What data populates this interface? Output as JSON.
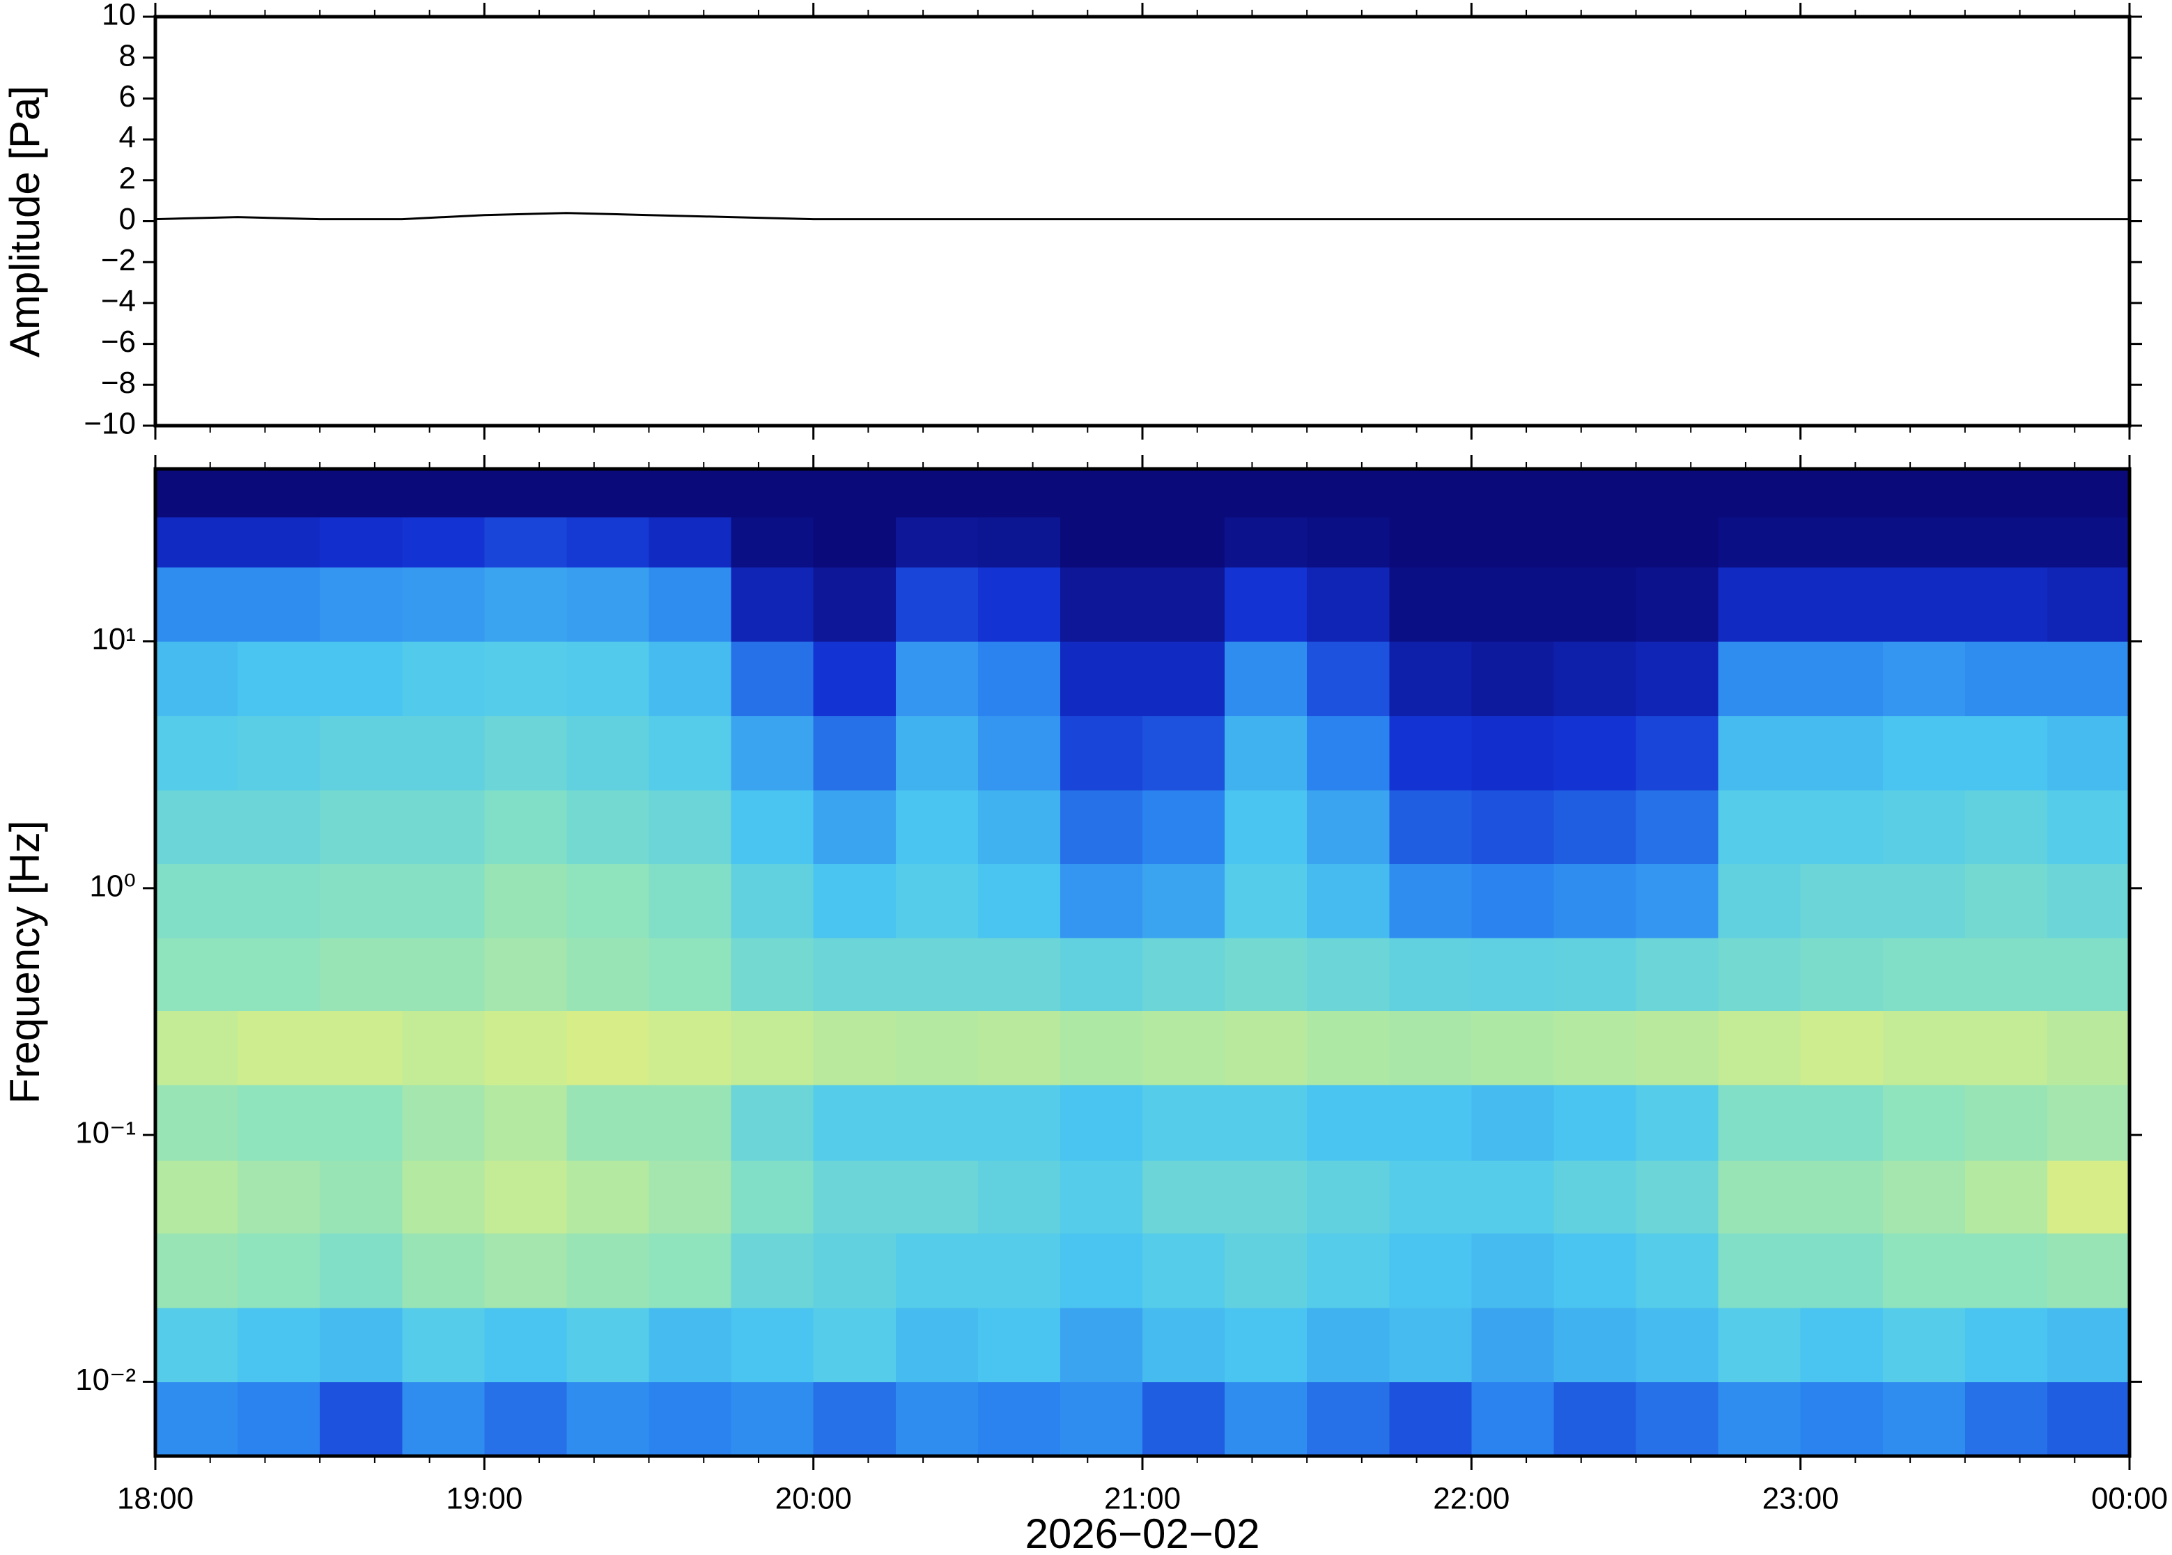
{
  "chart_data": [
    {
      "type": "line",
      "ylabel": "Amplitude [Pa]",
      "color": "#000000",
      "x": [
        0,
        15,
        30,
        45,
        60,
        75,
        90,
        105,
        120,
        135,
        150,
        165,
        180,
        195,
        210,
        225,
        240,
        255,
        270,
        285,
        300,
        315,
        330,
        345,
        360
      ],
      "values": [
        0.1,
        0.2,
        0.1,
        0.1,
        0.3,
        0.4,
        0.3,
        0.2,
        0.1,
        0.1,
        0.1,
        0.1,
        0.1,
        0.1,
        0.1,
        0.1,
        0.1,
        0.1,
        0.1,
        0.1,
        0.1,
        0.1,
        0.1,
        0.1,
        0.1
      ],
      "xlim": [
        0,
        360
      ],
      "ylim": [
        -10,
        10
      ],
      "xticks": [
        0,
        60,
        120,
        180,
        240,
        300,
        360
      ],
      "xminorticks": [
        10,
        20,
        30,
        40,
        50,
        70,
        80,
        90,
        100,
        110,
        130,
        140,
        150,
        160,
        170,
        190,
        200,
        210,
        220,
        230,
        250,
        260,
        270,
        280,
        290,
        310,
        320,
        330,
        340,
        350
      ],
      "yticks": [
        10,
        8,
        6,
        4,
        2,
        0,
        {
          "value": -2,
          "label": "−2"
        },
        {
          "value": -4,
          "label": "−4"
        },
        {
          "value": -6,
          "label": "−6"
        },
        {
          "value": -8,
          "label": "−8"
        },
        {
          "value": -10,
          "label": "−10"
        }
      ]
    },
    {
      "type": "heatmap",
      "ylabel": "Frequency [Hz]",
      "xlabel": "2026−02−02",
      "ylog": true,
      "xlim": [
        0,
        360
      ],
      "ylim": [
        0.005,
        50
      ],
      "xticks": [
        {
          "value": 0,
          "label": "18:00"
        },
        {
          "value": 60,
          "label": "19:00"
        },
        {
          "value": 120,
          "label": "20:00"
        },
        {
          "value": 180,
          "label": "21:00"
        },
        {
          "value": 240,
          "label": "22:00"
        },
        {
          "value": 300,
          "label": "23:00"
        },
        {
          "value": 360,
          "label": "00:00"
        }
      ],
      "xminorticks": [
        10,
        20,
        30,
        40,
        50,
        70,
        80,
        90,
        100,
        110,
        130,
        140,
        150,
        160,
        170,
        190,
        200,
        210,
        220,
        230,
        250,
        260,
        270,
        280,
        290,
        310,
        320,
        330,
        340,
        350
      ],
      "yticks": [
        {
          "value": 0.01,
          "label": "10⁻²"
        },
        {
          "value": 0.1,
          "label": "10⁻¹"
        },
        {
          "value": 1,
          "label": "10⁰"
        },
        {
          "value": 10,
          "label": "10¹"
        }
      ],
      "colormap": [
        "#0a0a7a",
        "#1230d0",
        "#2c86f0",
        "#4cc8f0",
        "#8ae2c0",
        "#d6ee88",
        "#f4d070",
        "#f08a50"
      ],
      "x_edges": [
        0,
        15,
        30,
        45,
        60,
        75,
        90,
        105,
        120,
        135,
        150,
        165,
        180,
        195,
        210,
        225,
        240,
        255,
        270,
        285,
        300,
        315,
        330,
        345,
        360
      ],
      "y_edges": [
        0.005,
        0.01,
        0.02,
        0.04,
        0.079,
        0.16,
        0.32,
        0.63,
        1.26,
        2.5,
        5,
        10,
        20,
        32,
        50
      ],
      "z": [
        [
          0.3,
          0.28,
          0.2,
          0.3,
          0.25,
          0.3,
          0.28,
          0.3,
          0.25,
          0.3,
          0.28,
          0.3,
          0.22,
          0.3,
          0.25,
          0.2,
          0.28,
          0.22,
          0.25,
          0.3,
          0.28,
          0.3,
          0.25,
          0.22
        ],
        [
          0.45,
          0.42,
          0.4,
          0.45,
          0.42,
          0.45,
          0.4,
          0.42,
          0.45,
          0.4,
          0.42,
          0.35,
          0.4,
          0.42,
          0.38,
          0.4,
          0.35,
          0.38,
          0.4,
          0.45,
          0.42,
          0.45,
          0.42,
          0.4
        ],
        [
          0.6,
          0.58,
          0.55,
          0.6,
          0.62,
          0.6,
          0.58,
          0.5,
          0.48,
          0.45,
          0.45,
          0.42,
          0.45,
          0.48,
          0.45,
          0.42,
          0.4,
          0.42,
          0.45,
          0.55,
          0.55,
          0.58,
          0.58,
          0.6
        ],
        [
          0.65,
          0.62,
          0.6,
          0.65,
          0.68,
          0.65,
          0.62,
          0.55,
          0.5,
          0.5,
          0.48,
          0.45,
          0.5,
          0.5,
          0.48,
          0.45,
          0.45,
          0.48,
          0.5,
          0.6,
          0.6,
          0.62,
          0.65,
          0.72
        ],
        [
          0.6,
          0.58,
          0.58,
          0.62,
          0.65,
          0.6,
          0.6,
          0.5,
          0.45,
          0.45,
          0.45,
          0.42,
          0.45,
          0.45,
          0.42,
          0.42,
          0.4,
          0.42,
          0.45,
          0.55,
          0.55,
          0.58,
          0.6,
          0.62
        ],
        [
          0.68,
          0.7,
          0.7,
          0.68,
          0.7,
          0.72,
          0.7,
          0.68,
          0.66,
          0.65,
          0.66,
          0.64,
          0.65,
          0.66,
          0.64,
          0.63,
          0.64,
          0.65,
          0.66,
          0.68,
          0.7,
          0.68,
          0.68,
          0.66
        ],
        [
          0.58,
          0.58,
          0.6,
          0.6,
          0.62,
          0.6,
          0.58,
          0.52,
          0.5,
          0.5,
          0.5,
          0.48,
          0.5,
          0.52,
          0.5,
          0.48,
          0.47,
          0.48,
          0.5,
          0.52,
          0.54,
          0.55,
          0.55,
          0.55
        ],
        [
          0.55,
          0.55,
          0.56,
          0.56,
          0.6,
          0.58,
          0.55,
          0.48,
          0.42,
          0.45,
          0.42,
          0.32,
          0.35,
          0.45,
          0.4,
          0.3,
          0.28,
          0.3,
          0.32,
          0.48,
          0.5,
          0.5,
          0.52,
          0.5
        ],
        [
          0.5,
          0.5,
          0.52,
          0.52,
          0.55,
          0.52,
          0.5,
          0.42,
          0.35,
          0.42,
          0.38,
          0.25,
          0.28,
          0.42,
          0.35,
          0.22,
          0.2,
          0.22,
          0.25,
          0.45,
          0.45,
          0.46,
          0.48,
          0.45
        ],
        [
          0.45,
          0.46,
          0.48,
          0.48,
          0.5,
          0.48,
          0.45,
          0.35,
          0.25,
          0.38,
          0.32,
          0.18,
          0.2,
          0.38,
          0.28,
          0.15,
          0.14,
          0.15,
          0.18,
          0.4,
          0.4,
          0.42,
          0.42,
          0.4
        ],
        [
          0.4,
          0.42,
          0.42,
          0.44,
          0.45,
          0.44,
          0.4,
          0.25,
          0.15,
          0.32,
          0.28,
          0.12,
          0.12,
          0.3,
          0.2,
          0.08,
          0.06,
          0.08,
          0.1,
          0.3,
          0.3,
          0.32,
          0.3,
          0.3
        ],
        [
          0.3,
          0.3,
          0.32,
          0.33,
          0.35,
          0.34,
          0.3,
          0.1,
          0.05,
          0.18,
          0.15,
          0.05,
          0.05,
          0.15,
          0.1,
          0.02,
          0.02,
          0.02,
          0.03,
          0.12,
          0.12,
          0.12,
          0.12,
          0.1
        ],
        [
          0.12,
          0.12,
          0.14,
          0.15,
          0.18,
          0.16,
          0.12,
          0.02,
          0,
          0.05,
          0.04,
          0,
          0,
          0.03,
          0.02,
          0,
          0,
          0,
          0,
          0.02,
          0.02,
          0.02,
          0.02,
          0.02
        ],
        [
          0,
          0,
          0,
          0,
          0,
          0,
          0,
          0,
          0,
          0,
          0,
          0,
          0,
          0,
          0,
          0,
          0,
          0,
          0,
          0,
          0,
          0,
          0,
          0
        ]
      ]
    }
  ]
}
